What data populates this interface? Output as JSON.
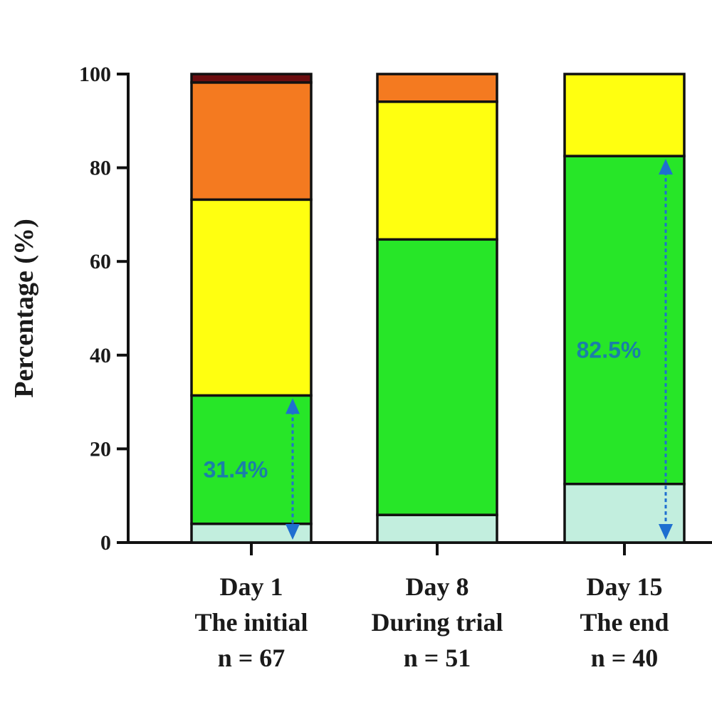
{
  "chart_data": {
    "type": "bar",
    "stacked": true,
    "title": "",
    "xlabel": "",
    "ylabel": "Percentage (%)",
    "ylim": [
      0,
      100
    ],
    "yticks": [
      "0",
      "20",
      "40",
      "60",
      "80",
      "100"
    ],
    "grid": false,
    "categories": [
      [
        "Day 1",
        "The initial",
        "n = 67"
      ],
      [
        "Day 8",
        "During trial",
        "n = 51"
      ],
      [
        "Day 15",
        "The end",
        "n = 40"
      ]
    ],
    "segment_colors": [
      "#c2eede",
      "#27e628",
      "#ffff10",
      "#f47a20",
      "#6b0d10"
    ],
    "series": [
      {
        "values": [
          4.0,
          5.9,
          12.5
        ]
      },
      {
        "values": [
          27.4,
          58.8,
          70.0
        ]
      },
      {
        "values": [
          41.8,
          29.4,
          17.5
        ]
      },
      {
        "values": [
          25.0,
          5.9,
          0.0
        ]
      },
      {
        "values": [
          1.8,
          0.0,
          0.0
        ]
      }
    ],
    "annotations": [
      {
        "category_index": 0,
        "text": "31.4%",
        "from": 0,
        "to": 31.4,
        "color": "#1f6fd0"
      },
      {
        "category_index": 2,
        "text": "82.5%",
        "from": 0,
        "to": 82.5,
        "color": "#1f6fd0"
      }
    ]
  }
}
